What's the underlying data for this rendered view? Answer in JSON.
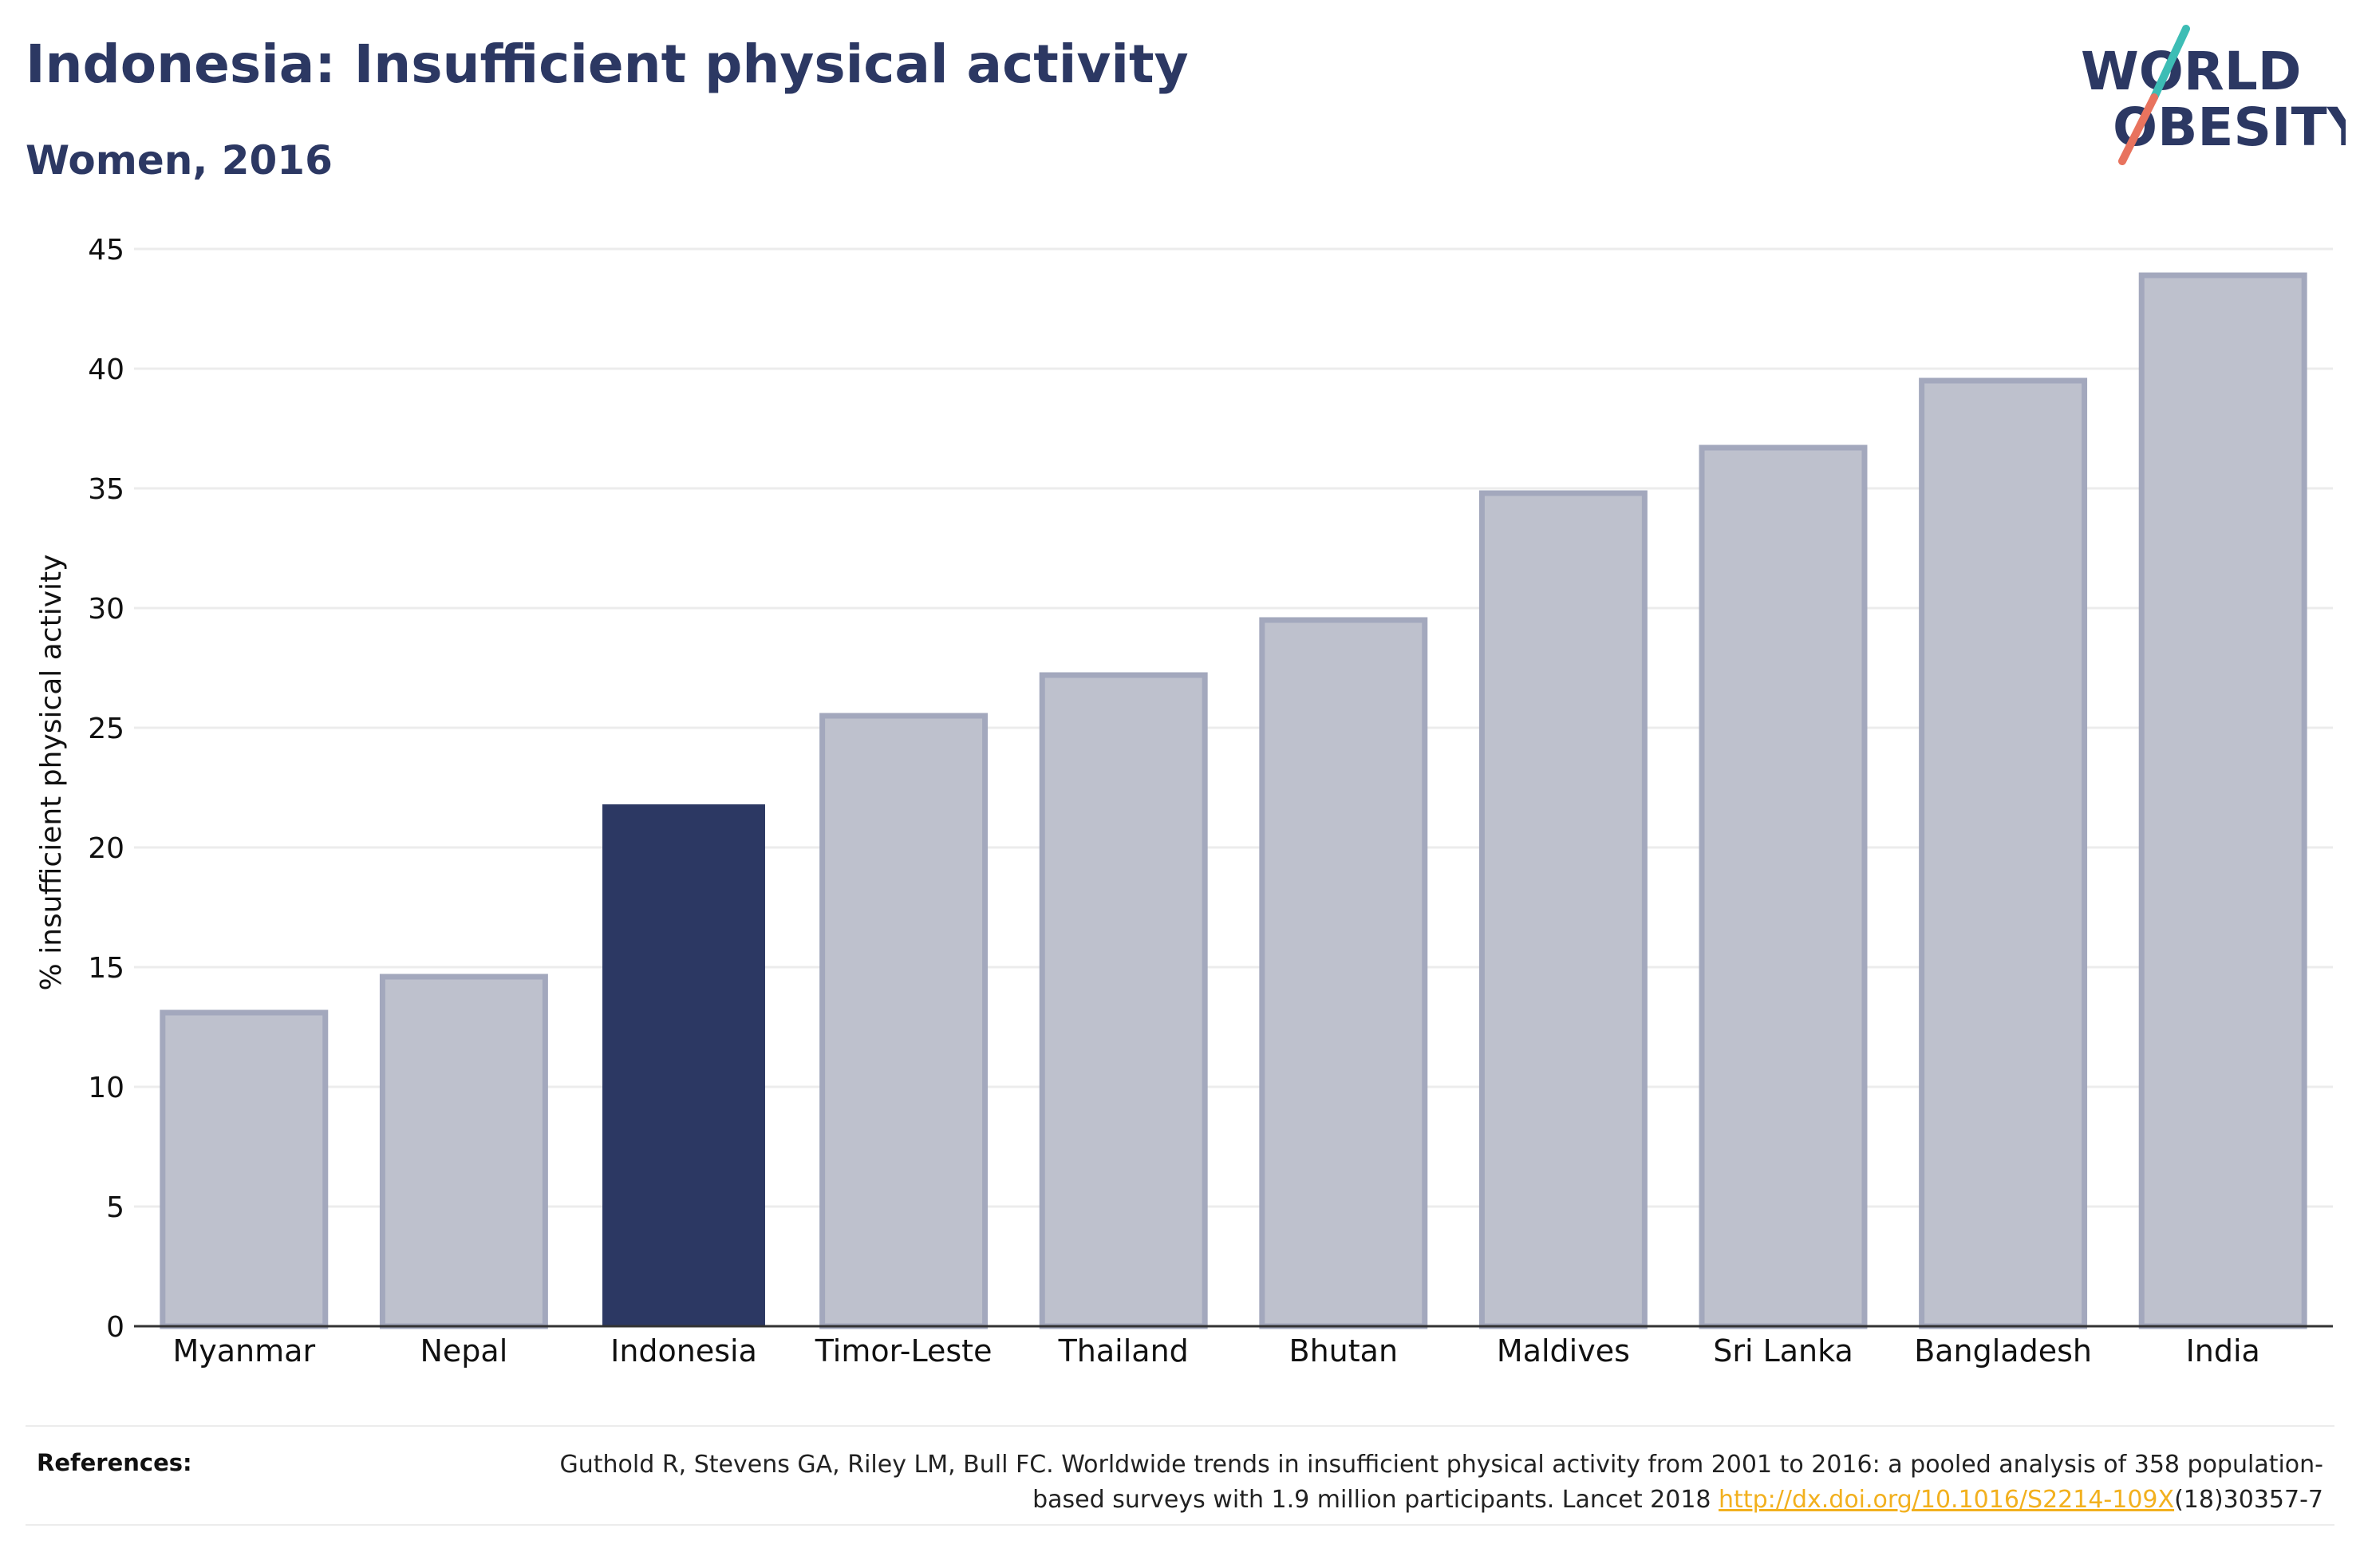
{
  "header": {
    "title": "Indonesia: Insufficient physical activity",
    "subtitle": "Women, 2016"
  },
  "logo": {
    "line1": "WORLD",
    "line2": "OBESITY",
    "colors": {
      "text": "#2c3863",
      "slash_top": "#3dbdb5",
      "slash_bottom": "#e8735e"
    }
  },
  "chart_data": {
    "type": "bar",
    "categories": [
      "Myanmar",
      "Nepal",
      "Indonesia",
      "Timor-Leste",
      "Thailand",
      "Bhutan",
      "Maldives",
      "Sri Lanka",
      "Bangladesh",
      "India"
    ],
    "values": [
      13.1,
      14.6,
      21.8,
      25.5,
      27.2,
      29.5,
      34.8,
      36.7,
      39.5,
      43.9
    ],
    "highlight": "Indonesia",
    "title": "Indonesia: Insufficient physical activity",
    "subtitle": "Women, 2016",
    "xlabel": "",
    "ylabel": "% insufficient physical activity",
    "ylim": [
      0,
      45
    ],
    "yticks": [
      0,
      5,
      10,
      15,
      20,
      25,
      30,
      35,
      40,
      45
    ],
    "grid": true,
    "colors": {
      "bar_fill": "#bec1cd",
      "bar_stroke": "#a3a8bd",
      "highlight": "#2c3863",
      "grid": "#ececec",
      "axis": "#333333"
    }
  },
  "references": {
    "label": "References:",
    "text_before": "Guthold R, Stevens GA, Riley LM, Bull FC. Worldwide trends in insufficient physical activity from 2001 to 2016: a pooled analysis of 358 population-based surveys with 1.9 million participants. Lancet 2018 ",
    "link": "http://dx.doi.org/10.1016/S2214-109X",
    "text_after": "(18)30357-7"
  }
}
